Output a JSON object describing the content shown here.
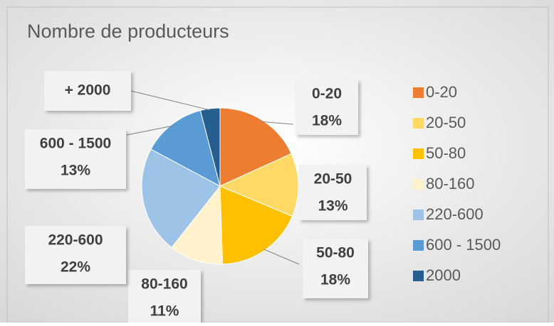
{
  "chart_data": {
    "type": "pie",
    "title": "Nombre de producteurs",
    "categories": [
      "0-20",
      "20-50",
      "50-80",
      "80-160",
      "220-600",
      "600 - 1500",
      "2000"
    ],
    "label_categories": [
      "0-20",
      "20-50",
      "50-80",
      "80-160",
      "220-600",
      "600 - 1500",
      "+ 2000"
    ],
    "values": [
      18,
      13,
      18,
      11,
      22,
      13,
      4
    ],
    "value_labels": [
      "18%",
      "13%",
      "18%",
      "11%",
      "22%",
      "13%",
      null
    ],
    "colors": [
      "#ED7D31",
      "#FFD966",
      "#FFC000",
      "#FFF2CC",
      "#9DC3E6",
      "#5B9BD5",
      "#255E91"
    ],
    "legend": "right"
  }
}
